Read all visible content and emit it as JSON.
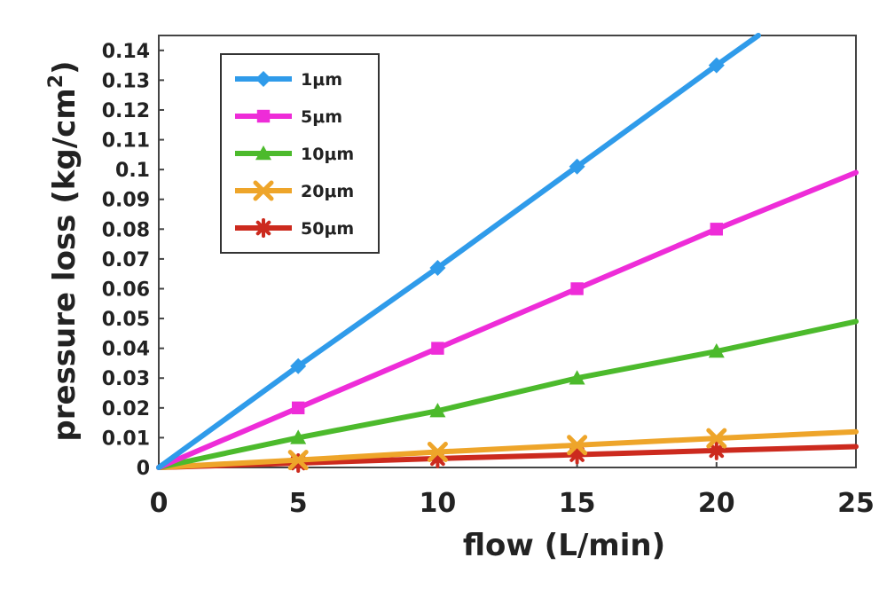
{
  "chart_data": {
    "type": "line",
    "title": "",
    "xlabel": "flow (L/min)",
    "ylabel_main": "pressure loss (kg/cm",
    "ylabel_sup": "2",
    "ylabel_close": ")",
    "xlim": [
      0,
      25
    ],
    "ylim": [
      0,
      0.145
    ],
    "x_ticks": [
      "0",
      "5",
      "10",
      "15",
      "20",
      "25"
    ],
    "y_ticks": [
      "0",
      "0.01",
      "0.02",
      "0.03",
      "0.04",
      "0.05",
      "0.06",
      "0.07",
      "0.08",
      "0.09",
      "0.1",
      "0.11",
      "0.12",
      "0.13",
      "0.14"
    ],
    "grid": false,
    "legend_position": "top-left",
    "series": [
      {
        "name": "1μm",
        "color": "#2f9bea",
        "marker": "diamond",
        "x": [
          0,
          5,
          10,
          15,
          20,
          21.5
        ],
        "y": [
          0,
          0.034,
          0.067,
          0.101,
          0.135,
          0.145
        ]
      },
      {
        "name": "5μm",
        "color": "#ee2cd8",
        "marker": "square",
        "x": [
          0,
          5,
          10,
          15,
          20,
          25
        ],
        "y": [
          0,
          0.02,
          0.04,
          0.06,
          0.08,
          0.099
        ]
      },
      {
        "name": "10μm",
        "color": "#4cba2c",
        "marker": "triangle",
        "x": [
          0,
          5,
          10,
          15,
          20,
          25
        ],
        "y": [
          0,
          0.01,
          0.019,
          0.03,
          0.039,
          0.049
        ]
      },
      {
        "name": "20μm",
        "color": "#eea52a",
        "marker": "x",
        "x": [
          0,
          5,
          10,
          15,
          20,
          25
        ],
        "y": [
          0,
          0.0025,
          0.0052,
          0.0075,
          0.0098,
          0.012
        ]
      },
      {
        "name": "50μm",
        "color": "#cc2a1e",
        "marker": "star",
        "x": [
          0,
          5,
          10,
          15,
          20,
          25
        ],
        "y": [
          0,
          0.0015,
          0.003,
          0.0043,
          0.0057,
          0.007
        ]
      }
    ]
  }
}
